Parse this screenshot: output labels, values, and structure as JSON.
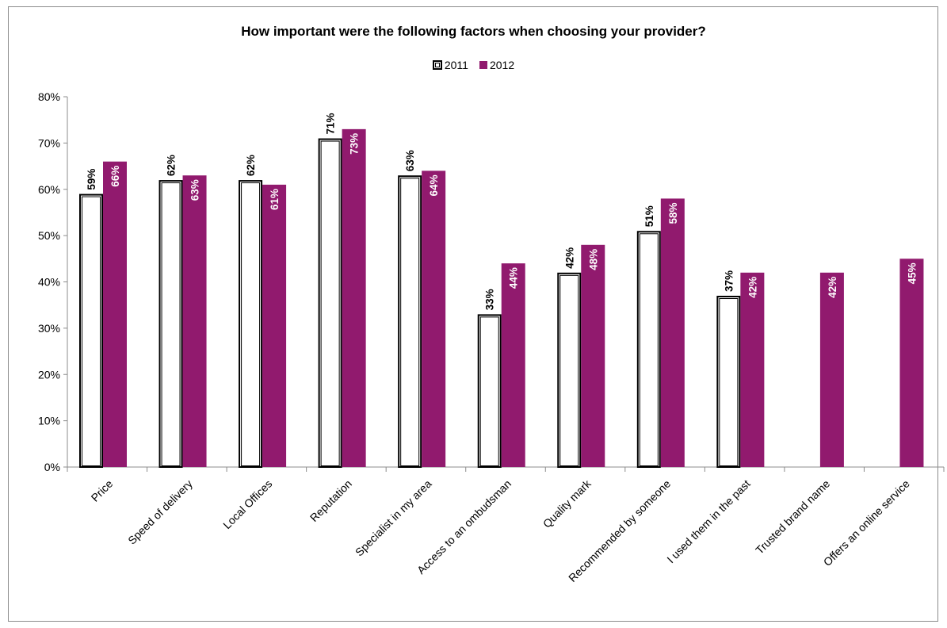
{
  "chart_data": {
    "type": "bar",
    "title": "How important were the following factors when choosing your provider?",
    "categories": [
      "Price",
      "Speed of delivery",
      "Local Offices",
      "Reputation",
      "Specialist in my area",
      "Access to an ombudsman",
      "Quality mark",
      "Recommended by someone",
      "I used them in the past",
      "Trusted brand name",
      "Offers an online service"
    ],
    "series": [
      {
        "name": "2011",
        "values": [
          59,
          62,
          62,
          71,
          63,
          33,
          42,
          51,
          37,
          null,
          null
        ],
        "labels": [
          "59%",
          "62%",
          "62%",
          "71%",
          "63%",
          "33%",
          "42%",
          "51%",
          "37%",
          "",
          ""
        ]
      },
      {
        "name": "2012",
        "values": [
          66,
          63,
          61,
          73,
          64,
          44,
          48,
          58,
          42,
          42,
          45
        ],
        "labels": [
          "66%",
          "63%",
          "61%",
          "73%",
          "64%",
          "44%",
          "48%",
          "58%",
          "42%",
          "42%",
          "45%"
        ]
      }
    ],
    "yticks": [
      "0%",
      "10%",
      "20%",
      "30%",
      "40%",
      "50%",
      "60%",
      "70%",
      "80%"
    ],
    "ylim": [
      0,
      80
    ],
    "legend_position": "top",
    "grid": false
  },
  "colors": {
    "series_2011_fill": "#ffffff",
    "series_2011_border": "#000000",
    "series_2012_fill": "#911a6e"
  }
}
